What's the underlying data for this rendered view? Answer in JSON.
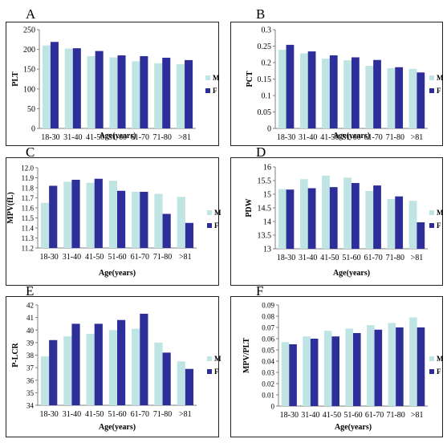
{
  "colors": {
    "male": "#bfe4e4",
    "female": "#2e2e9a",
    "axis": "#7f7f7f"
  },
  "chart_data": [
    {
      "panel_label": "A",
      "type": "bar",
      "categories": [
        "18-30",
        "31-40",
        "41-50",
        "51-60",
        "61-70",
        "71-80",
        ">81"
      ],
      "series": [
        {
          "name": "M",
          "values": [
            210,
            202,
            183,
            180,
            170,
            165,
            163
          ]
        },
        {
          "name": "F",
          "values": [
            219,
            203,
            196,
            185,
            183,
            179,
            173
          ]
        }
      ],
      "ylim": [
        0,
        250
      ],
      "yticks": [
        "0",
        "50",
        "100",
        "150",
        "200",
        "250"
      ],
      "xlabel": "Age(years)",
      "ylabel": "PLT",
      "legend": "right"
    },
    {
      "panel_label": "B",
      "type": "bar",
      "categories": [
        "18-30",
        "31-40",
        "41-50",
        "51-60",
        "61-70",
        "71-80",
        ">81"
      ],
      "series": [
        {
          "name": "M",
          "values": [
            0.239,
            0.228,
            0.212,
            0.207,
            0.19,
            0.183,
            0.181
          ]
        },
        {
          "name": "F",
          "values": [
            0.254,
            0.234,
            0.222,
            0.216,
            0.208,
            0.186,
            0.17
          ]
        }
      ],
      "ylim": [
        0,
        0.3
      ],
      "yticks": [
        "0",
        "0.05",
        "0.1",
        "0.15",
        "0.2",
        "0.25",
        "0.3"
      ],
      "xlabel": "Age(years)",
      "ylabel": "PCT",
      "legend": "right"
    },
    {
      "panel_label": "C",
      "type": "bar",
      "categories": [
        "18-30",
        "31-40",
        "41-50",
        "51-60",
        "61-70",
        "71-80",
        ">81"
      ],
      "series": [
        {
          "name": "M",
          "values": [
            11.65,
            11.86,
            11.85,
            11.87,
            11.76,
            11.74,
            11.71
          ]
        },
        {
          "name": "F",
          "values": [
            11.82,
            11.88,
            11.89,
            11.77,
            11.76,
            11.54,
            11.45
          ]
        }
      ],
      "ylim": [
        11.2,
        12.0
      ],
      "yticks": [
        "11.2",
        "11.3",
        "11.4",
        "11.5",
        "11.6",
        "11.7",
        "11.8",
        "11.9",
        "12.0"
      ],
      "xlabel": "Age(years)",
      "ylabel": "MPV(fL)",
      "legend": "right"
    },
    {
      "panel_label": "D",
      "type": "bar",
      "categories": [
        "18-30",
        "31-40",
        "41-50",
        "51-60",
        "61-70",
        "71-80",
        ">81"
      ],
      "series": [
        {
          "name": "M",
          "values": [
            15.19,
            15.55,
            15.68,
            15.61,
            15.12,
            14.82,
            14.76
          ]
        },
        {
          "name": "F",
          "values": [
            15.17,
            15.22,
            15.26,
            15.41,
            15.32,
            14.92,
            13.97
          ]
        }
      ],
      "ylim": [
        13,
        16
      ],
      "yticks": [
        "13",
        "13.5",
        "14",
        "14.5",
        "15",
        "15.5",
        "16"
      ],
      "xlabel": "Age(years)",
      "ylabel": "PDW",
      "legend": "right"
    },
    {
      "panel_label": "E",
      "type": "bar",
      "categories": [
        "18-30",
        "31-40",
        "41-50",
        "51-60",
        "61-70",
        "71-80",
        ">81"
      ],
      "series": [
        {
          "name": "M",
          "values": [
            37.9,
            39.5,
            39.7,
            40,
            40.1,
            39,
            37.5
          ]
        },
        {
          "name": "F",
          "values": [
            39.2,
            40.5,
            40.5,
            40.8,
            41.3,
            38.2,
            36.9
          ]
        }
      ],
      "ylim": [
        34,
        42
      ],
      "yticks": [
        "34",
        "35",
        "36",
        "37",
        "38",
        "39",
        "40",
        "41",
        "42"
      ],
      "xlabel": "Age(years)",
      "ylabel": "P-LCR",
      "legend": "right"
    },
    {
      "panel_label": "F",
      "type": "bar",
      "categories": [
        "18-30",
        "31-40",
        "41-50",
        "51-60",
        "61-70",
        "71-80",
        ">81"
      ],
      "series": [
        {
          "name": "M",
          "values": [
            0.057,
            0.062,
            0.067,
            0.069,
            0.072,
            0.074,
            0.079
          ]
        },
        {
          "name": "F",
          "values": [
            0.055,
            0.06,
            0.062,
            0.065,
            0.068,
            0.07,
            0.07
          ]
        }
      ],
      "ylim": [
        0,
        0.09
      ],
      "yticks": [
        "0",
        "0.01",
        "0.02",
        "0.03",
        "0.04",
        "0.05",
        "0.06",
        "0.07",
        "0.08",
        "0.09"
      ],
      "xlabel": "Age(years)",
      "ylabel": "MPV/PLT",
      "legend": "right"
    }
  ]
}
